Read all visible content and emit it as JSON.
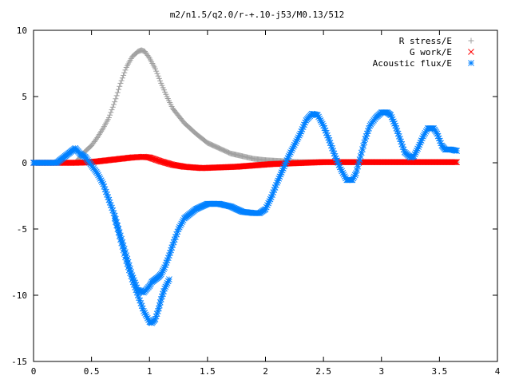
{
  "chart_data": {
    "type": "scatter",
    "title": "m2/n1.5/q2.0/r-+.10-j53/M0.13/512",
    "xlabel": "",
    "ylabel": "",
    "xlim": [
      0,
      4
    ],
    "ylim": [
      -15,
      10
    ],
    "x_ticks": [
      0,
      0.5,
      1,
      1.5,
      2,
      2.5,
      3,
      3.5,
      4
    ],
    "x_tick_labels": [
      "0",
      "0.5",
      "1",
      "1.5",
      "2",
      "2.5",
      "3",
      "3.5",
      "4"
    ],
    "y_ticks": [
      -15,
      -10,
      -5,
      0,
      5,
      10
    ],
    "y_tick_labels": [
      "-15",
      "-10",
      "-5",
      "0",
      "5",
      "10"
    ],
    "grid": false,
    "legend_position": "top-right",
    "series": [
      {
        "name": "R stress/E",
        "color": "#a0a0a0",
        "marker": "plus",
        "x": [
          0.0,
          0.2,
          0.36,
          0.4,
          0.45,
          0.5,
          0.55,
          0.6,
          0.65,
          0.7,
          0.75,
          0.8,
          0.85,
          0.9,
          0.93,
          0.96,
          1.0,
          1.05,
          1.1,
          1.15,
          1.2,
          1.3,
          1.4,
          1.5,
          1.6,
          1.7,
          1.8,
          1.9,
          2.0,
          2.1,
          2.2,
          2.3,
          2.5,
          2.7,
          2.9,
          3.1,
          3.3,
          3.5,
          3.65
        ],
        "y": [
          0.0,
          0.0,
          0.0,
          0.4,
          0.9,
          1.3,
          1.9,
          2.6,
          3.4,
          4.6,
          6.0,
          7.2,
          8.0,
          8.4,
          8.5,
          8.4,
          7.9,
          7.1,
          6.0,
          5.0,
          4.1,
          3.0,
          2.2,
          1.5,
          1.1,
          0.7,
          0.5,
          0.3,
          0.2,
          0.15,
          0.1,
          0.05,
          0.05,
          0.05,
          0.05,
          0.05,
          0.05,
          0.05,
          0.05
        ]
      },
      {
        "name": "G work/E",
        "color": "#ff0000",
        "marker": "cross",
        "x": [
          0.0,
          0.2,
          0.36,
          0.45,
          0.55,
          0.65,
          0.75,
          0.85,
          0.95,
          1.0,
          1.05,
          1.1,
          1.2,
          1.3,
          1.45,
          1.6,
          1.75,
          1.9,
          2.05,
          2.2,
          2.35,
          2.5,
          2.7,
          2.9,
          3.1,
          3.3,
          3.5,
          3.65
        ],
        "y": [
          0.0,
          0.0,
          0.0,
          0.02,
          0.1,
          0.2,
          0.3,
          0.4,
          0.45,
          0.4,
          0.25,
          0.1,
          -0.15,
          -0.3,
          -0.4,
          -0.35,
          -0.3,
          -0.2,
          -0.1,
          -0.05,
          0.0,
          0.05,
          0.05,
          0.05,
          0.05,
          0.05,
          0.05,
          0.05
        ]
      },
      {
        "name": "Acoustic flux/E",
        "color": "#0080ff",
        "marker": "star",
        "x": [
          0.0,
          0.2,
          0.36,
          0.4,
          0.45,
          0.5,
          0.55,
          0.6,
          0.65,
          0.7,
          0.75,
          0.8,
          0.85,
          0.9,
          0.95,
          1.0,
          1.02,
          1.05,
          1.08,
          1.1,
          1.13,
          1.17,
          1.2,
          1.25,
          1.3,
          1.4,
          1.5,
          1.6,
          1.7,
          1.8,
          1.9,
          1.95,
          2.0,
          2.05,
          2.1,
          2.2,
          2.3,
          2.35,
          2.4,
          2.45,
          2.5,
          2.55,
          2.6,
          2.65,
          2.7,
          2.75,
          2.78,
          2.82,
          2.86,
          2.9,
          2.95,
          3.0,
          3.05,
          3.08,
          3.12,
          3.16,
          3.2,
          3.25,
          3.28,
          3.32,
          3.36,
          3.4,
          3.45,
          3.48,
          3.52,
          3.55,
          3.6,
          3.65
        ],
        "y": [
          0.0,
          0.0,
          1.1,
          0.7,
          0.4,
          -0.2,
          -0.8,
          -1.6,
          -2.8,
          -4.0,
          -5.5,
          -7.0,
          -8.5,
          -9.6,
          -9.8,
          -9.3,
          -9.0,
          -8.8,
          -8.6,
          -8.4,
          -7.9,
          -7.0,
          -6.2,
          -5.0,
          -4.2,
          -3.5,
          -3.1,
          -3.1,
          -3.3,
          -3.7,
          -3.8,
          -3.8,
          -3.5,
          -2.6,
          -1.5,
          0.5,
          2.2,
          3.2,
          3.7,
          3.6,
          2.8,
          1.7,
          0.5,
          -0.5,
          -1.3,
          -1.3,
          -0.8,
          0.5,
          1.8,
          2.8,
          3.4,
          3.8,
          3.8,
          3.6,
          2.8,
          1.8,
          0.8,
          0.4,
          0.5,
          1.2,
          2.0,
          2.6,
          2.6,
          2.2,
          1.3,
          1.0,
          1.0,
          0.9
        ]
      },
      {
        "name": "",
        "color": "#0080ff",
        "marker": "star",
        "x": [
          0.7,
          0.75,
          0.8,
          0.85,
          0.9,
          0.95,
          1.0,
          1.02,
          1.05,
          1.08,
          1.1,
          1.13,
          1.17
        ],
        "y": [
          -4.2,
          -5.8,
          -7.4,
          -8.8,
          -10.0,
          -11.2,
          -12.0,
          -12.1,
          -11.8,
          -11.0,
          -10.3,
          -9.5,
          -8.8
        ]
      }
    ]
  }
}
